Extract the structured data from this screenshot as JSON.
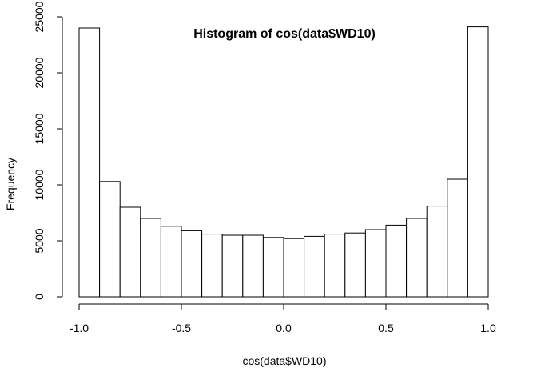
{
  "chart_data": {
    "type": "bar",
    "title": "Histogram of cos(data$WD10)",
    "xlabel": "cos(data$WD10)",
    "ylabel": "Frequency",
    "bin_edges": [
      -1.0,
      -0.9,
      -0.8,
      -0.7,
      -0.6,
      -0.5,
      -0.4,
      -0.3,
      -0.2,
      -0.1,
      0.0,
      0.1,
      0.2,
      0.3,
      0.4,
      0.5,
      0.6,
      0.7,
      0.8,
      0.9,
      1.0
    ],
    "values": [
      24000,
      10300,
      8000,
      7000,
      6300,
      5900,
      5600,
      5500,
      5500,
      5300,
      5200,
      5400,
      5600,
      5700,
      6000,
      6400,
      7000,
      8100,
      10500,
      24100
    ],
    "xlim": [
      -1.0,
      1.0
    ],
    "ylim": [
      0,
      25000
    ],
    "x_ticks": [
      "-1.0",
      "-0.5",
      "0.0",
      "0.5",
      "1.0"
    ],
    "x_tick_values": [
      -1.0,
      -0.5,
      0.0,
      0.5,
      1.0
    ],
    "y_ticks": [
      "0",
      "5000",
      "10000",
      "15000",
      "20000",
      "25000"
    ],
    "y_tick_values": [
      0,
      5000,
      10000,
      15000,
      20000,
      25000
    ],
    "grid": false,
    "legend": "none",
    "colors": {
      "bar_fill": "#ffffff",
      "bar_stroke": "#000000",
      "text": "#000000"
    }
  }
}
